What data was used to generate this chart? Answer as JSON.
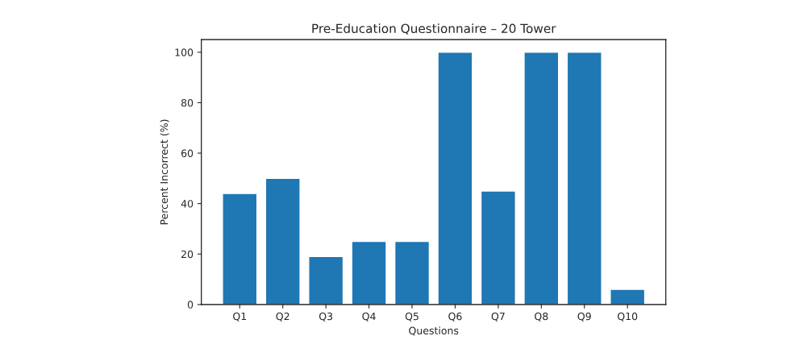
{
  "chart_data": {
    "type": "bar",
    "title": "Pre-Education Questionnaire – 20 Tower",
    "xlabel": "Questions",
    "ylabel": "Percent Incorrect (%)",
    "categories": [
      "Q1",
      "Q2",
      "Q3",
      "Q4",
      "Q5",
      "Q6",
      "Q7",
      "Q8",
      "Q9",
      "Q10"
    ],
    "values": [
      44,
      50,
      19,
      25,
      25,
      100,
      45,
      100,
      100,
      6
    ],
    "color": "#1f77b4",
    "ylim": [
      0,
      105
    ],
    "yticks": [
      0,
      20,
      40,
      60,
      80,
      100
    ],
    "grid": false,
    "legend": false
  }
}
